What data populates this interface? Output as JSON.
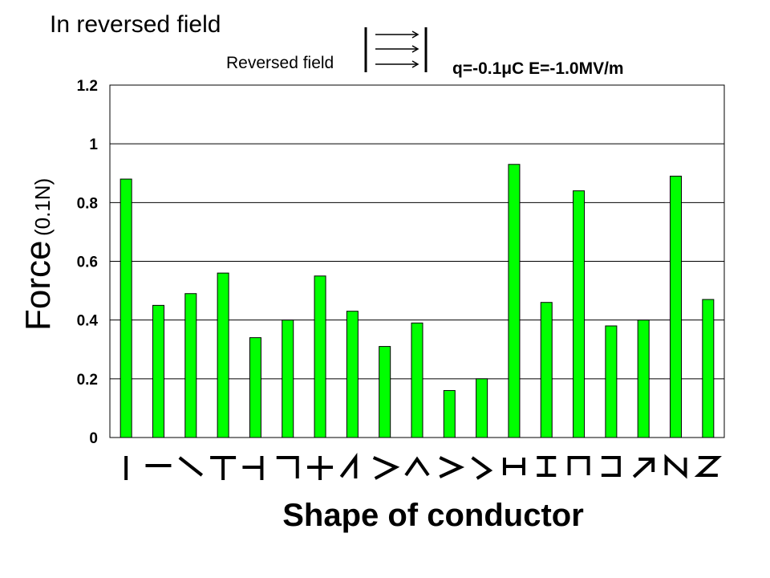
{
  "chart_data": {
    "type": "bar",
    "title": "In reversed field",
    "legend_label": "Reversed field",
    "parameters": "q=-0.1μC  E=-1.0MV/m",
    "ylabel": "Force",
    "ylabel_unit": "(0.1N)",
    "xlabel": "Shape of conductor",
    "ylim": [
      0,
      1.2
    ],
    "yticks": [
      "0",
      "0.2",
      "0.4",
      "0.6",
      "0.8",
      "1",
      "1.2"
    ],
    "grid": true,
    "bar_color": "#00ff00",
    "categories": [
      "I-shape",
      "horizontal line",
      "backslash",
      "T-shape",
      "rotated T",
      "hook",
      "plus",
      "wedge",
      "angle",
      "inverted V",
      "greater-than",
      "lambda",
      "H-shape",
      "I-beam",
      "cup",
      "bracket",
      "arrow",
      "N-shape",
      "Z-shape"
    ],
    "values": [
      0.88,
      0.45,
      0.49,
      0.56,
      0.34,
      0.4,
      0.55,
      0.43,
      0.31,
      0.39,
      0.16,
      0.2,
      0.93,
      0.46,
      0.84,
      0.38,
      0.4,
      0.89,
      0.47
    ],
    "letter_glyphs": [
      "",
      "",
      "",
      "",
      "",
      "",
      "",
      "",
      "",
      "",
      "",
      "",
      "H",
      "",
      "",
      "",
      "",
      "N",
      "Z"
    ]
  }
}
